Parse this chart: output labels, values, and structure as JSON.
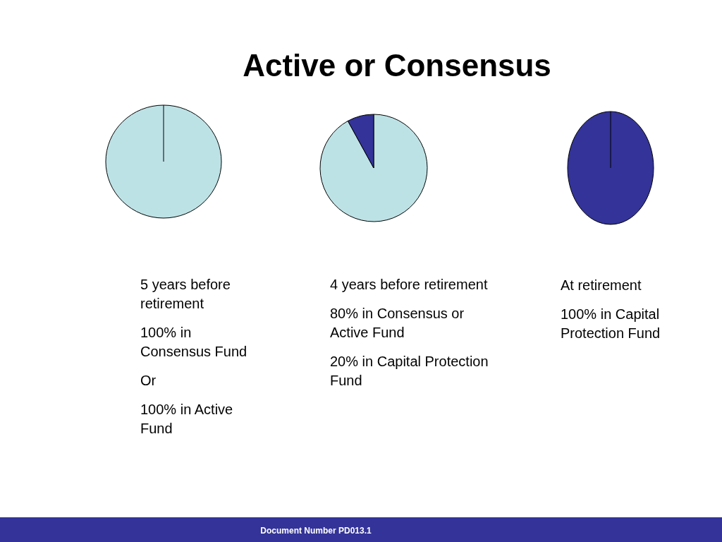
{
  "chart_data": [
    {
      "type": "pie",
      "categories": [
        null
      ],
      "values": [
        100
      ],
      "colors": [
        "#bde2e6"
      ],
      "annotations": [
        "5 years before retirement",
        "100% in Consensus Fund",
        "Or",
        "100% in Active Fund"
      ]
    },
    {
      "type": "pie",
      "title": "Active or Consensus",
      "categories": [
        null,
        null
      ],
      "values": [
        92,
        8
      ],
      "colors": [
        "#bde2e6",
        "#333399"
      ],
      "annotations": [
        "4 years before retirement",
        "80% in Consensus or Active  Fund",
        "20% in Capital Protection Fund"
      ]
    },
    {
      "type": "pie",
      "categories": [
        null
      ],
      "values": [
        100
      ],
      "colors": [
        "#333399"
      ],
      "annotations": [
        "At retirement",
        "100% in Capital Protection Fund",
        "Document Number PD013.1"
      ]
    }
  ]
}
